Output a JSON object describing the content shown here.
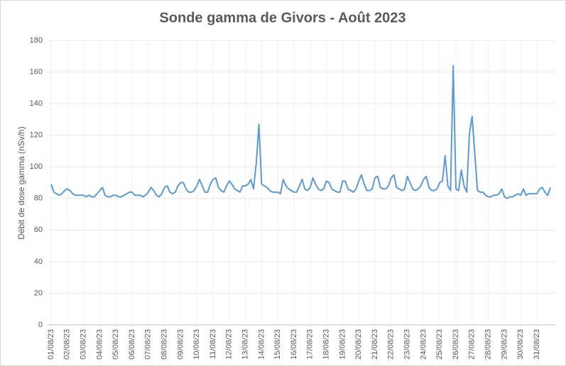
{
  "chart_data": {
    "type": "line",
    "title": "Sonde gamma de Givors - Août 2023",
    "y_label": "Débit de dose gamma (nSv/h)",
    "color": "#5b9bd5",
    "grid": true,
    "ylim": [
      0,
      180
    ],
    "yticks": [
      0,
      20,
      40,
      60,
      80,
      100,
      120,
      140,
      160,
      180
    ],
    "categories": [
      "01/08/23",
      null,
      null,
      null,
      null,
      null,
      "02/08/23",
      null,
      null,
      null,
      null,
      null,
      "03/08/23",
      null,
      null,
      null,
      null,
      null,
      "04/08/23",
      null,
      null,
      null,
      null,
      null,
      "05/08/23",
      null,
      null,
      null,
      null,
      null,
      "06/08/23",
      null,
      null,
      null,
      null,
      null,
      "07/08/23",
      null,
      null,
      null,
      null,
      null,
      "08/08/23",
      null,
      null,
      null,
      null,
      null,
      "09/08/23",
      null,
      null,
      null,
      null,
      null,
      "10/08/23",
      null,
      null,
      null,
      null,
      null,
      "11/08/23",
      null,
      null,
      null,
      null,
      null,
      "12/08/23",
      null,
      null,
      null,
      null,
      null,
      "13/08/23",
      null,
      null,
      null,
      null,
      null,
      "14/08/23",
      null,
      null,
      null,
      null,
      null,
      "15/08/23",
      null,
      null,
      null,
      null,
      null,
      "16/08/23",
      null,
      null,
      null,
      null,
      null,
      "17/08/23",
      null,
      null,
      null,
      null,
      null,
      "18/08/23",
      null,
      null,
      null,
      null,
      null,
      "19/08/23",
      null,
      null,
      null,
      null,
      null,
      "20/08/23",
      null,
      null,
      null,
      null,
      null,
      "21/08/23",
      null,
      null,
      null,
      null,
      null,
      "22/08/23",
      null,
      null,
      null,
      null,
      null,
      "23/08/23",
      null,
      null,
      null,
      null,
      null,
      "24/08/23",
      null,
      null,
      null,
      null,
      null,
      "25/08/23",
      null,
      null,
      null,
      null,
      null,
      "26/08/23",
      null,
      null,
      null,
      null,
      null,
      "27/08/23",
      null,
      null,
      null,
      null,
      null,
      "28/08/23",
      null,
      null,
      null,
      null,
      null,
      "29/08/23",
      null,
      null,
      null,
      null,
      null,
      "30/08/23",
      null,
      null,
      null,
      null,
      null,
      "31/08/23",
      null,
      null,
      null,
      null,
      null
    ],
    "values": [
      89,
      84,
      83,
      82,
      83,
      85,
      86,
      85,
      83,
      82,
      82,
      82,
      82,
      81,
      82,
      81,
      81,
      83,
      85,
      87,
      82,
      81,
      81,
      82,
      82,
      81,
      81,
      82,
      83,
      84,
      84,
      82,
      82,
      82,
      81,
      82,
      84,
      87,
      85,
      82,
      81,
      83,
      87,
      88,
      84,
      83,
      84,
      88,
      90,
      90,
      86,
      84,
      84,
      85,
      88,
      92,
      88,
      84,
      84,
      89,
      92,
      93,
      87,
      85,
      84,
      88,
      91,
      89,
      86,
      85,
      84,
      88,
      88,
      89,
      92,
      86,
      102,
      127,
      89,
      88,
      87,
      85,
      84,
      84,
      84,
      83,
      92,
      88,
      86,
      85,
      84,
      84,
      88,
      92,
      86,
      85,
      87,
      93,
      89,
      86,
      85,
      86,
      91,
      90,
      86,
      85,
      84,
      84,
      91,
      91,
      86,
      85,
      84,
      86,
      91,
      95,
      89,
      85,
      85,
      86,
      93,
      94,
      87,
      86,
      86,
      88,
      93,
      95,
      87,
      86,
      85,
      86,
      94,
      90,
      86,
      85,
      86,
      88,
      92,
      94,
      87,
      85,
      85,
      86,
      90,
      91,
      107,
      88,
      85,
      164,
      86,
      85,
      98,
      88,
      84,
      121,
      132,
      108,
      85,
      84,
      84,
      82,
      81,
      81,
      82,
      82,
      83,
      86,
      81,
      80,
      81,
      81,
      82,
      83,
      82,
      86,
      82,
      83,
      83,
      83,
      83,
      86,
      87,
      84,
      82,
      87
    ]
  }
}
